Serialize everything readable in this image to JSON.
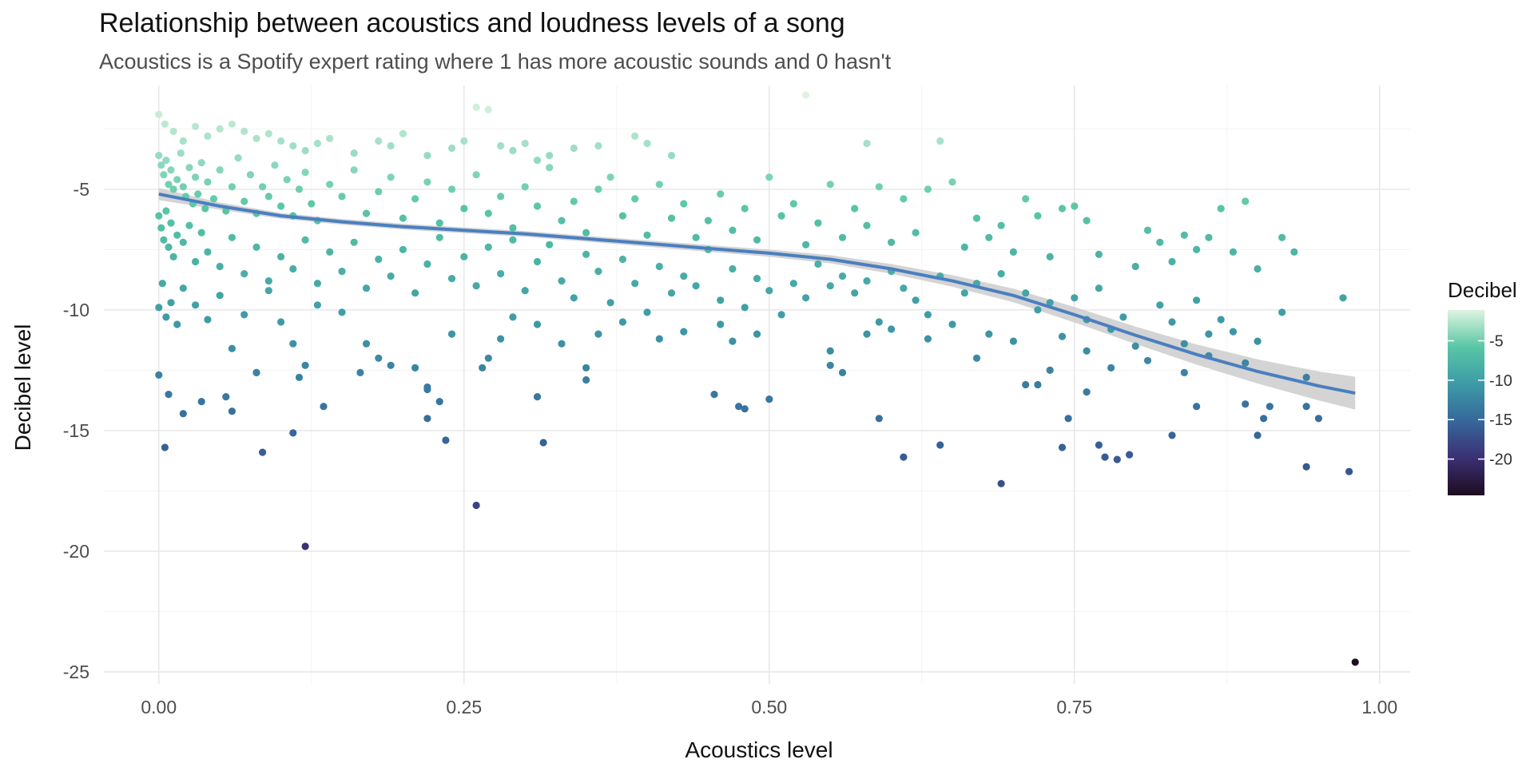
{
  "chart_data": {
    "type": "scatter",
    "title": "Relationship between acoustics and loudness levels of a song",
    "subtitle": "Acoustics is a Spotify expert rating where 1 has more acoustic sounds and 0 hasn't",
    "xlabel": "Acoustics level",
    "ylabel": "Decibel level",
    "xlim": [
      -0.045,
      1.025
    ],
    "ylim": [
      -25.5,
      -0.7
    ],
    "x_ticks": [
      0,
      0.25,
      0.5,
      0.75,
      1
    ],
    "x_tick_labels": [
      "0.00",
      "0.25",
      "0.50",
      "0.75",
      "1.00"
    ],
    "y_ticks": [
      -5,
      -10,
      -15,
      -20,
      -25
    ],
    "y_tick_labels": [
      "-5",
      "-10",
      "-15",
      "-20",
      "-25"
    ],
    "grid": true,
    "legend": {
      "title": "Decibel",
      "placement": "right",
      "ticks": [
        -5,
        -10,
        -15,
        -20
      ],
      "tick_labels": [
        "-5",
        "-10",
        "-15",
        "-20"
      ],
      "range": [
        -24.6,
        -1.1
      ],
      "colors": [
        "#1d0d1f",
        "#3b2f73",
        "#36679b",
        "#3d9aa6",
        "#58c6a5",
        "#def4e1"
      ]
    },
    "smooth_color": "#4a7fc0",
    "band_color": "#cccccc",
    "smooth": {
      "x": [
        0,
        0.05,
        0.1,
        0.15,
        0.2,
        0.25,
        0.3,
        0.35,
        0.4,
        0.45,
        0.5,
        0.55,
        0.6,
        0.65,
        0.7,
        0.75,
        0.8,
        0.85,
        0.9,
        0.95,
        0.98
      ],
      "y": [
        -5.2,
        -5.7,
        -6.1,
        -6.35,
        -6.55,
        -6.7,
        -6.85,
        -7.05,
        -7.25,
        -7.45,
        -7.65,
        -7.9,
        -8.3,
        -8.8,
        -9.4,
        -10.2,
        -11.05,
        -11.85,
        -12.55,
        -13.15,
        -13.45
      ],
      "ci": [
        0.25,
        0.15,
        0.12,
        0.12,
        0.12,
        0.12,
        0.12,
        0.12,
        0.13,
        0.14,
        0.15,
        0.17,
        0.2,
        0.24,
        0.28,
        0.32,
        0.36,
        0.42,
        0.5,
        0.6,
        0.68
      ]
    },
    "points": [
      [
        0.0,
        -1.9
      ],
      [
        0.005,
        -2.3
      ],
      [
        0.012,
        -2.6
      ],
      [
        0.02,
        -3.0
      ],
      [
        0.03,
        -2.4
      ],
      [
        0.04,
        -2.8
      ],
      [
        0.05,
        -2.5
      ],
      [
        0.06,
        -2.3
      ],
      [
        0.07,
        -2.6
      ],
      [
        0.08,
        -2.9
      ],
      [
        0.09,
        -2.7
      ],
      [
        0.1,
        -3.0
      ],
      [
        0.11,
        -3.2
      ],
      [
        0.12,
        -3.4
      ],
      [
        0.13,
        -3.1
      ],
      [
        0.14,
        -2.9
      ],
      [
        0.16,
        -3.5
      ],
      [
        0.18,
        -3.0
      ],
      [
        0.19,
        -3.2
      ],
      [
        0.2,
        -2.7
      ],
      [
        0.22,
        -3.6
      ],
      [
        0.24,
        -3.3
      ],
      [
        0.25,
        -3.0
      ],
      [
        0.26,
        -1.6
      ],
      [
        0.27,
        -1.7
      ],
      [
        0.28,
        -3.2
      ],
      [
        0.29,
        -3.4
      ],
      [
        0.3,
        -3.1
      ],
      [
        0.31,
        -3.8
      ],
      [
        0.32,
        -3.6
      ],
      [
        0.34,
        -3.3
      ],
      [
        0.36,
        -3.2
      ],
      [
        0.39,
        -2.8
      ],
      [
        0.4,
        -3.1
      ],
      [
        0.42,
        -3.6
      ],
      [
        0.53,
        -1.1
      ],
      [
        0.58,
        -3.1
      ],
      [
        0.64,
        -3.0
      ],
      [
        0.0,
        -3.6
      ],
      [
        0.002,
        -4.0
      ],
      [
        0.004,
        -4.4
      ],
      [
        0.006,
        -3.8
      ],
      [
        0.008,
        -4.8
      ],
      [
        0.01,
        -4.2
      ],
      [
        0.012,
        -5.0
      ],
      [
        0.015,
        -4.6
      ],
      [
        0.018,
        -3.5
      ],
      [
        0.02,
        -4.9
      ],
      [
        0.022,
        -5.3
      ],
      [
        0.025,
        -4.1
      ],
      [
        0.028,
        -5.6
      ],
      [
        0.03,
        -4.5
      ],
      [
        0.032,
        -5.2
      ],
      [
        0.035,
        -3.9
      ],
      [
        0.038,
        -5.8
      ],
      [
        0.04,
        -4.7
      ],
      [
        0.045,
        -5.4
      ],
      [
        0.05,
        -4.2
      ],
      [
        0.055,
        -5.9
      ],
      [
        0.06,
        -4.9
      ],
      [
        0.065,
        -3.7
      ],
      [
        0.07,
        -5.5
      ],
      [
        0.075,
        -4.4
      ],
      [
        0.08,
        -6.0
      ],
      [
        0.085,
        -4.9
      ],
      [
        0.09,
        -5.3
      ],
      [
        0.095,
        -4.0
      ],
      [
        0.1,
        -5.7
      ],
      [
        0.105,
        -4.6
      ],
      [
        0.11,
        -6.1
      ],
      [
        0.115,
        -5.0
      ],
      [
        0.12,
        -4.3
      ],
      [
        0.125,
        -5.6
      ],
      [
        0.13,
        -6.3
      ],
      [
        0.14,
        -4.8
      ],
      [
        0.15,
        -5.3
      ],
      [
        0.16,
        -4.2
      ],
      [
        0.17,
        -6.0
      ],
      [
        0.18,
        -5.1
      ],
      [
        0.19,
        -4.5
      ],
      [
        0.2,
        -6.2
      ],
      [
        0.21,
        -5.4
      ],
      [
        0.22,
        -4.7
      ],
      [
        0.23,
        -6.4
      ],
      [
        0.24,
        -5.0
      ],
      [
        0.25,
        -5.8
      ],
      [
        0.26,
        -4.4
      ],
      [
        0.27,
        -6.0
      ],
      [
        0.28,
        -5.3
      ],
      [
        0.29,
        -6.6
      ],
      [
        0.3,
        -4.9
      ],
      [
        0.31,
        -5.7
      ],
      [
        0.32,
        -4.1
      ],
      [
        0.33,
        -6.3
      ],
      [
        0.34,
        -5.5
      ],
      [
        0.35,
        -6.8
      ],
      [
        0.36,
        -5.0
      ],
      [
        0.37,
        -4.5
      ],
      [
        0.38,
        -6.1
      ],
      [
        0.39,
        -5.4
      ],
      [
        0.4,
        -6.9
      ],
      [
        0.41,
        -4.8
      ],
      [
        0.42,
        -6.2
      ],
      [
        0.43,
        -5.6
      ],
      [
        0.44,
        -7.0
      ],
      [
        0.45,
        -6.3
      ],
      [
        0.46,
        -5.2
      ],
      [
        0.47,
        -6.7
      ],
      [
        0.48,
        -5.8
      ],
      [
        0.49,
        -7.1
      ],
      [
        0.5,
        -4.5
      ],
      [
        0.51,
        -6.1
      ],
      [
        0.52,
        -5.6
      ],
      [
        0.53,
        -7.3
      ],
      [
        0.54,
        -6.4
      ],
      [
        0.55,
        -4.8
      ],
      [
        0.56,
        -7.0
      ],
      [
        0.57,
        -5.8
      ],
      [
        0.58,
        -6.5
      ],
      [
        0.59,
        -4.9
      ],
      [
        0.6,
        -7.2
      ],
      [
        0.61,
        -5.4
      ],
      [
        0.62,
        -6.8
      ],
      [
        0.63,
        -5.0
      ],
      [
        0.65,
        -4.7
      ],
      [
        0.66,
        -7.4
      ],
      [
        0.67,
        -6.2
      ],
      [
        0.68,
        -7.0
      ],
      [
        0.69,
        -6.5
      ],
      [
        0.7,
        -7.6
      ],
      [
        0.71,
        -5.4
      ],
      [
        0.72,
        -6.1
      ],
      [
        0.73,
        -7.8
      ],
      [
        0.74,
        -5.8
      ],
      [
        0.75,
        -5.7
      ],
      [
        0.76,
        -6.3
      ],
      [
        0.77,
        -7.7
      ],
      [
        0.8,
        -8.2
      ],
      [
        0.81,
        -6.7
      ],
      [
        0.82,
        -7.2
      ],
      [
        0.83,
        -8.0
      ],
      [
        0.84,
        -6.9
      ],
      [
        0.85,
        -7.5
      ],
      [
        0.86,
        -7.0
      ],
      [
        0.87,
        -5.8
      ],
      [
        0.88,
        -7.6
      ],
      [
        0.89,
        -5.5
      ],
      [
        0.9,
        -8.3
      ],
      [
        0.92,
        -7.0
      ],
      [
        0.93,
        -7.6
      ],
      [
        0.0,
        -6.1
      ],
      [
        0.002,
        -6.6
      ],
      [
        0.004,
        -7.1
      ],
      [
        0.006,
        -5.9
      ],
      [
        0.008,
        -7.4
      ],
      [
        0.01,
        -6.4
      ],
      [
        0.012,
        -7.8
      ],
      [
        0.015,
        -6.9
      ],
      [
        0.02,
        -7.2
      ],
      [
        0.025,
        -6.5
      ],
      [
        0.03,
        -8.0
      ],
      [
        0.035,
        -6.8
      ],
      [
        0.04,
        -7.6
      ],
      [
        0.05,
        -8.2
      ],
      [
        0.06,
        -7.0
      ],
      [
        0.07,
        -8.5
      ],
      [
        0.08,
        -7.4
      ],
      [
        0.09,
        -8.8
      ],
      [
        0.1,
        -7.8
      ],
      [
        0.11,
        -8.3
      ],
      [
        0.12,
        -7.1
      ],
      [
        0.13,
        -8.9
      ],
      [
        0.14,
        -7.6
      ],
      [
        0.15,
        -8.4
      ],
      [
        0.16,
        -7.2
      ],
      [
        0.17,
        -9.1
      ],
      [
        0.18,
        -7.9
      ],
      [
        0.19,
        -8.6
      ],
      [
        0.2,
        -7.5
      ],
      [
        0.21,
        -9.3
      ],
      [
        0.22,
        -8.1
      ],
      [
        0.23,
        -7.0
      ],
      [
        0.24,
        -8.7
      ],
      [
        0.25,
        -7.8
      ],
      [
        0.26,
        -9.0
      ],
      [
        0.27,
        -7.4
      ],
      [
        0.28,
        -8.5
      ],
      [
        0.29,
        -7.1
      ],
      [
        0.3,
        -9.2
      ],
      [
        0.31,
        -8.0
      ],
      [
        0.32,
        -7.3
      ],
      [
        0.33,
        -8.8
      ],
      [
        0.34,
        -9.5
      ],
      [
        0.35,
        -7.7
      ],
      [
        0.36,
        -8.4
      ],
      [
        0.37,
        -9.7
      ],
      [
        0.38,
        -7.9
      ],
      [
        0.39,
        -8.9
      ],
      [
        0.4,
        -10.1
      ],
      [
        0.41,
        -8.2
      ],
      [
        0.42,
        -9.3
      ],
      [
        0.43,
        -8.6
      ],
      [
        0.44,
        -9.0
      ],
      [
        0.45,
        -7.5
      ],
      [
        0.46,
        -9.6
      ],
      [
        0.47,
        -8.3
      ],
      [
        0.48,
        -9.9
      ],
      [
        0.49,
        -8.7
      ],
      [
        0.5,
        -9.2
      ],
      [
        0.51,
        -10.2
      ],
      [
        0.52,
        -8.9
      ],
      [
        0.53,
        -9.5
      ],
      [
        0.54,
        -8.1
      ],
      [
        0.55,
        -9.0
      ],
      [
        0.56,
        -8.6
      ],
      [
        0.57,
        -9.3
      ],
      [
        0.58,
        -8.8
      ],
      [
        0.59,
        -10.5
      ],
      [
        0.6,
        -8.4
      ],
      [
        0.61,
        -9.1
      ],
      [
        0.62,
        -9.6
      ],
      [
        0.63,
        -10.2
      ],
      [
        0.64,
        -8.6
      ],
      [
        0.65,
        -10.6
      ],
      [
        0.66,
        -9.3
      ],
      [
        0.67,
        -8.9
      ],
      [
        0.68,
        -11.0
      ],
      [
        0.69,
        -8.5
      ],
      [
        0.7,
        -11.3
      ],
      [
        0.71,
        -9.3
      ],
      [
        0.72,
        -10.0
      ],
      [
        0.73,
        -9.7
      ],
      [
        0.74,
        -11.1
      ],
      [
        0.75,
        -9.5
      ],
      [
        0.76,
        -10.4
      ],
      [
        0.77,
        -9.1
      ],
      [
        0.78,
        -10.8
      ],
      [
        0.79,
        -10.3
      ],
      [
        0.8,
        -11.5
      ],
      [
        0.81,
        -12.1
      ],
      [
        0.82,
        -9.8
      ],
      [
        0.83,
        -10.5
      ],
      [
        0.84,
        -11.4
      ],
      [
        0.85,
        -9.6
      ],
      [
        0.86,
        -11.0
      ],
      [
        0.87,
        -10.4
      ],
      [
        0.88,
        -10.9
      ],
      [
        0.89,
        -12.2
      ],
      [
        0.9,
        -11.3
      ],
      [
        0.92,
        -10.1
      ],
      [
        0.94,
        -12.8
      ],
      [
        0.97,
        -9.5
      ],
      [
        0.0,
        -9.9
      ],
      [
        0.003,
        -8.9
      ],
      [
        0.006,
        -10.3
      ],
      [
        0.01,
        -9.7
      ],
      [
        0.015,
        -10.6
      ],
      [
        0.02,
        -9.1
      ],
      [
        0.03,
        -9.8
      ],
      [
        0.04,
        -10.4
      ],
      [
        0.05,
        -9.4
      ],
      [
        0.06,
        -11.6
      ],
      [
        0.07,
        -10.2
      ],
      [
        0.08,
        -12.6
      ],
      [
        0.09,
        -9.2
      ],
      [
        0.1,
        -10.5
      ],
      [
        0.11,
        -11.4
      ],
      [
        0.12,
        -12.3
      ],
      [
        0.13,
        -9.8
      ],
      [
        0.15,
        -10.1
      ],
      [
        0.17,
        -11.4
      ],
      [
        0.18,
        -12.0
      ],
      [
        0.19,
        -12.3
      ],
      [
        0.21,
        -12.4
      ],
      [
        0.22,
        -13.2
      ],
      [
        0.24,
        -11.0
      ],
      [
        0.27,
        -12.0
      ],
      [
        0.28,
        -11.2
      ],
      [
        0.29,
        -10.3
      ],
      [
        0.31,
        -10.6
      ],
      [
        0.33,
        -11.4
      ],
      [
        0.35,
        -12.4
      ],
      [
        0.36,
        -11.0
      ],
      [
        0.38,
        -10.5
      ],
      [
        0.41,
        -11.2
      ],
      [
        0.43,
        -10.9
      ],
      [
        0.46,
        -10.6
      ],
      [
        0.47,
        -11.3
      ],
      [
        0.49,
        -11.0
      ],
      [
        0.55,
        -11.7
      ],
      [
        0.58,
        -11.0
      ],
      [
        0.6,
        -10.8
      ],
      [
        0.63,
        -11.2
      ],
      [
        0.67,
        -12.0
      ],
      [
        0.71,
        -13.1
      ],
      [
        0.73,
        -12.5
      ],
      [
        0.76,
        -11.7
      ],
      [
        0.78,
        -12.4
      ],
      [
        0.84,
        -12.6
      ],
      [
        0.86,
        -11.9
      ],
      [
        0.89,
        -13.9
      ],
      [
        0.91,
        -14.0
      ],
      [
        0.0,
        -12.7
      ],
      [
        0.005,
        -15.7
      ],
      [
        0.008,
        -13.5
      ],
      [
        0.02,
        -14.3
      ],
      [
        0.035,
        -13.8
      ],
      [
        0.055,
        -13.6
      ],
      [
        0.06,
        -14.2
      ],
      [
        0.08,
        -12.6
      ],
      [
        0.085,
        -15.9
      ],
      [
        0.11,
        -15.1
      ],
      [
        0.115,
        -12.8
      ],
      [
        0.135,
        -14.0
      ],
      [
        0.165,
        -12.6
      ],
      [
        0.22,
        -13.3
      ],
      [
        0.22,
        -14.5
      ],
      [
        0.23,
        -13.8
      ],
      [
        0.235,
        -15.4
      ],
      [
        0.265,
        -12.4
      ],
      [
        0.31,
        -13.6
      ],
      [
        0.315,
        -15.5
      ],
      [
        0.35,
        -12.9
      ],
      [
        0.455,
        -13.5
      ],
      [
        0.475,
        -14.0
      ],
      [
        0.48,
        -14.1
      ],
      [
        0.5,
        -13.7
      ],
      [
        0.55,
        -12.3
      ],
      [
        0.56,
        -12.6
      ],
      [
        0.59,
        -14.5
      ],
      [
        0.61,
        -16.1
      ],
      [
        0.64,
        -15.6
      ],
      [
        0.72,
        -13.1
      ],
      [
        0.74,
        -15.7
      ],
      [
        0.745,
        -14.5
      ],
      [
        0.76,
        -13.4
      ],
      [
        0.77,
        -15.6
      ],
      [
        0.775,
        -16.1
      ],
      [
        0.785,
        -16.2
      ],
      [
        0.795,
        -16.0
      ],
      [
        0.83,
        -15.2
      ],
      [
        0.85,
        -14.0
      ],
      [
        0.9,
        -15.2
      ],
      [
        0.905,
        -14.5
      ],
      [
        0.94,
        -14.0
      ],
      [
        0.95,
        -14.5
      ],
      [
        0.94,
        -16.5
      ],
      [
        0.975,
        -16.7
      ],
      [
        0.69,
        -17.2
      ],
      [
        0.26,
        -18.1
      ],
      [
        0.12,
        -19.8
      ],
      [
        0.98,
        -24.6
      ]
    ]
  }
}
